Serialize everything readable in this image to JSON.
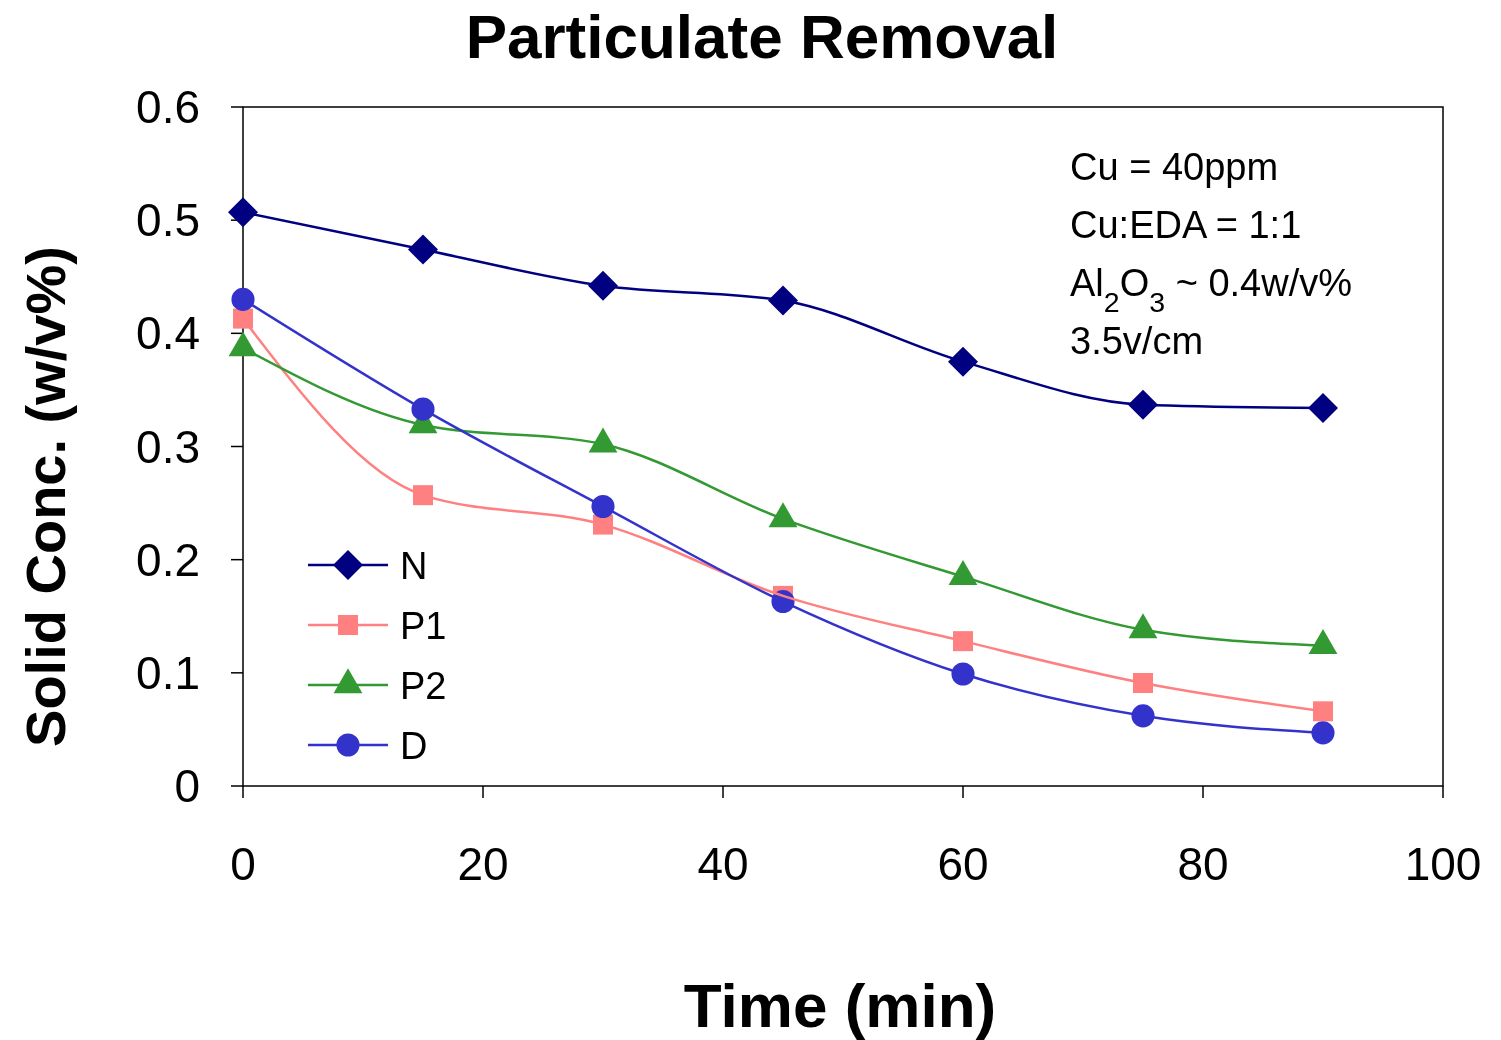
{
  "chart_data": {
    "type": "line",
    "title": "Particulate Removal",
    "xlabel": "Time (min)",
    "ylabel": "Solid Conc. (w/v%)",
    "x": [
      0,
      15,
      30,
      45,
      60,
      75,
      90
    ],
    "series": [
      {
        "name": "N",
        "color": "#000080",
        "marker": "diamond",
        "values": [
          0.507,
          0.474,
          0.442,
          0.429,
          0.375,
          0.337,
          0.334
        ]
      },
      {
        "name": "P1",
        "color": "#ff8080",
        "marker": "square",
        "values": [
          0.413,
          0.257,
          0.231,
          0.168,
          0.128,
          0.091,
          0.066
        ]
      },
      {
        "name": "P2",
        "color": "#339933",
        "marker": "triangle",
        "values": [
          0.387,
          0.319,
          0.302,
          0.236,
          0.185,
          0.138,
          0.124
        ]
      },
      {
        "name": "D",
        "color": "#3333cc",
        "marker": "circle",
        "values": [
          0.43,
          0.333,
          0.247,
          0.163,
          0.099,
          0.062,
          0.047
        ]
      }
    ],
    "xlim": [
      0,
      100
    ],
    "xticks": [
      0,
      20,
      40,
      60,
      80,
      100
    ],
    "ylim": [
      0,
      0.6
    ],
    "yticks": [
      0,
      0.1,
      0.2,
      0.3,
      0.4,
      0.5,
      0.6
    ],
    "grid": false,
    "legend": "left",
    "annotations": [
      "Cu = 40ppm",
      "Cu:EDA = 1:1",
      "Al$_{2}$O$_{3}$ ~ 0.4w/v%",
      "3.5v/cm"
    ]
  }
}
